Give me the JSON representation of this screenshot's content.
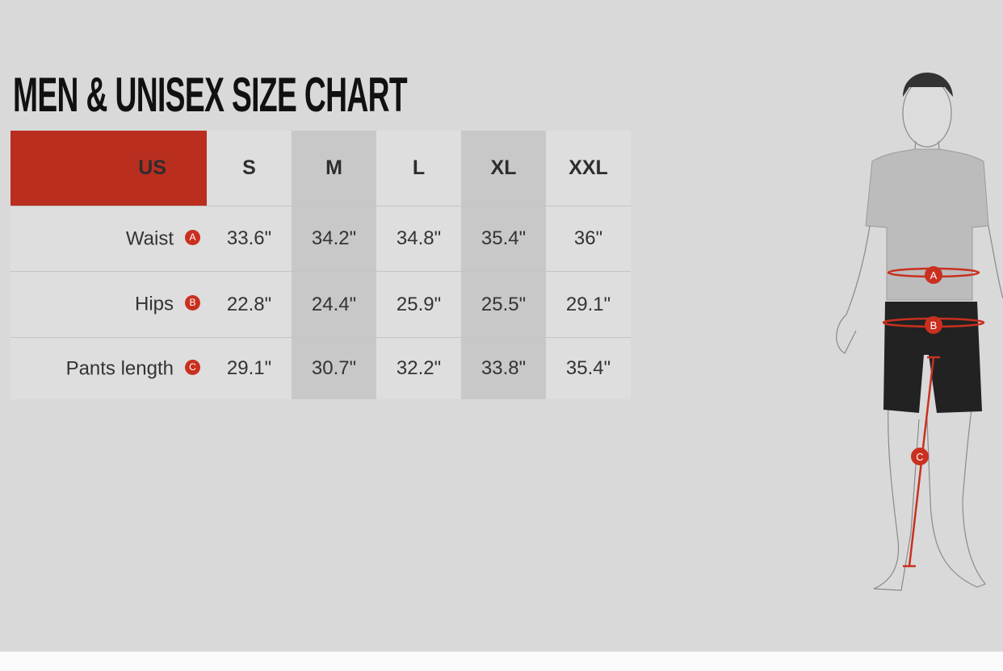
{
  "title": "MEN & UNISEX SIZE CHART",
  "table": {
    "region_label": "US",
    "sizes": [
      "S",
      "M",
      "L",
      "XL",
      "XXL"
    ],
    "rows": [
      {
        "label": "Waist",
        "marker": "A",
        "values": [
          "33.6\"",
          "34.2\"",
          "34.8\"",
          "35.4\"",
          "36\""
        ]
      },
      {
        "label": "Hips",
        "marker": "B",
        "values": [
          "22.8\"",
          "24.4\"",
          "25.9\"",
          "25.5\"",
          "29.1\""
        ]
      },
      {
        "label": "Pants length",
        "marker": "C",
        "values": [
          "29.1\"",
          "30.7\"",
          "32.2\"",
          "33.8\"",
          "35.4\""
        ]
      }
    ]
  },
  "figure": {
    "markers": [
      "A",
      "B",
      "C"
    ]
  },
  "colors": {
    "accent": "#b92e1f",
    "background": "#d9d9d9",
    "shaded_column": "#c8c8c8"
  }
}
